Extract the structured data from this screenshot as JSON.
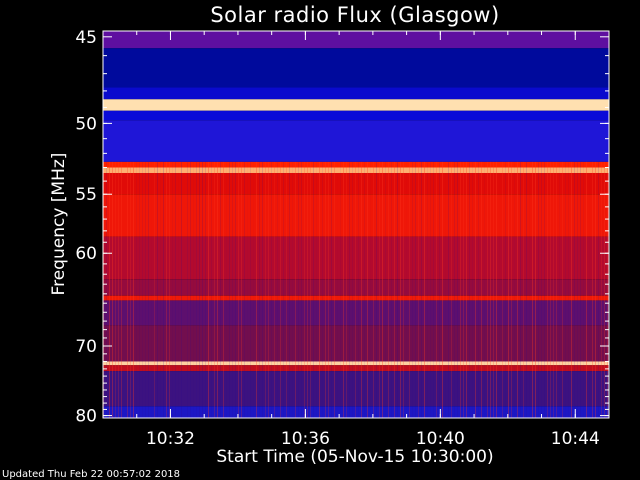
{
  "chart_data": {
    "type": "heatmap",
    "title": "Solar radio Flux (Glasgow)",
    "xlabel": "Start Time (05-Nov-15 10:30:00)",
    "ylabel": "Frequency [MHz]",
    "x_ticks": [
      "10:32",
      "10:36",
      "10:40",
      "10:44"
    ],
    "x_tick_minutes": [
      2,
      6,
      10,
      14
    ],
    "xlim_minutes": [
      0,
      15
    ],
    "y_ticks": [
      45,
      50,
      55,
      60,
      70,
      80
    ],
    "ylim": [
      44.7,
      80.4
    ],
    "y_scale": "reciprocal",
    "bands": [
      {
        "from": 44.7,
        "to": 45.6,
        "color": "#5e0fa0"
      },
      {
        "from": 45.6,
        "to": 47.8,
        "color": "#000a9c"
      },
      {
        "from": 47.8,
        "to": 48.5,
        "color": "#0a0acd"
      },
      {
        "from": 48.5,
        "to": 49.2,
        "color": "#ffe0b0"
      },
      {
        "from": 49.2,
        "to": 49.8,
        "color": "#0a0ad8"
      },
      {
        "from": 49.8,
        "to": 52.6,
        "color": "#1f16d7"
      },
      {
        "from": 52.6,
        "to": 53.0,
        "color": "#ff2200"
      },
      {
        "from": 53.0,
        "to": 53.4,
        "color": "#ffb070"
      },
      {
        "from": 53.4,
        "to": 55.0,
        "color": "#e00b08"
      },
      {
        "from": 55.0,
        "to": 58.5,
        "color": "#ef1708"
      },
      {
        "from": 58.5,
        "to": 62.5,
        "color": "#b30a2e"
      },
      {
        "from": 62.5,
        "to": 64.2,
        "color": "#950b3e"
      },
      {
        "from": 64.2,
        "to": 64.7,
        "color": "#f01a08"
      },
      {
        "from": 64.7,
        "to": 67.5,
        "color": "#5d0f6e"
      },
      {
        "from": 67.5,
        "to": 72.0,
        "color": "#720e4e"
      },
      {
        "from": 72.0,
        "to": 72.5,
        "color": "#ffd0a0"
      },
      {
        "from": 72.5,
        "to": 73.3,
        "color": "#c00d1e"
      },
      {
        "from": 73.3,
        "to": 78.5,
        "color": "#3c1280"
      },
      {
        "from": 78.5,
        "to": 80.4,
        "color": "#1d17c4"
      }
    ],
    "colorbar": false,
    "footer": "Updated Thu Feb 22 00:57:02 2018"
  }
}
